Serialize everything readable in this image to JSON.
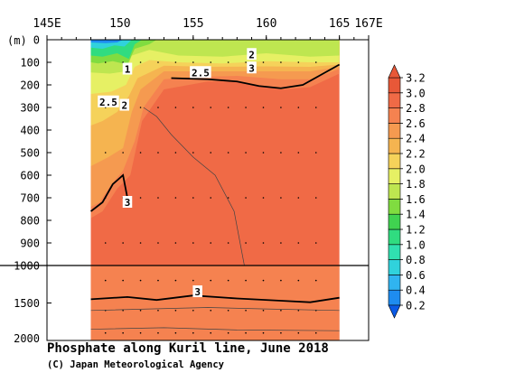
{
  "chart_data": {
    "type": "contour",
    "title": "Phosphate along Kuril line, June 2018",
    "credit": "(C) Japan Meteorological Agency",
    "y_unit_label": "(m)",
    "x_axis": {
      "range": [
        145,
        167
      ],
      "ticks": [
        {
          "value": 145,
          "label": "145E"
        },
        {
          "value": 150,
          "label": "150"
        },
        {
          "value": 155,
          "label": "155"
        },
        {
          "value": 160,
          "label": "160"
        },
        {
          "value": 165,
          "label": "165"
        },
        {
          "value": 167,
          "label": "167E"
        }
      ]
    },
    "y_axis": {
      "upper_range": [
        0,
        1000
      ],
      "lower_range": [
        1000,
        2000
      ],
      "upper_ticks": [
        0,
        100,
        200,
        300,
        400,
        500,
        600,
        700,
        800,
        900,
        1000
      ],
      "lower_ticks": [
        1500,
        2000
      ]
    },
    "section_extent_lon": [
      148,
      165
    ],
    "colorbar": {
      "levels": [
        0.2,
        0.4,
        0.6,
        0.8,
        1.0,
        1.2,
        1.4,
        1.6,
        1.8,
        2.0,
        2.2,
        2.4,
        2.6,
        2.8,
        3.0,
        3.2
      ],
      "labels": [
        "0.2",
        "0.4",
        "0.6",
        "0.8",
        "1.0",
        "1.2",
        "1.4",
        "1.6",
        "1.8",
        "2.0",
        "2.2",
        "2.4",
        "2.6",
        "2.8",
        "3.0",
        "3.2"
      ],
      "colors": [
        "#0a5ae6",
        "#1e8cf0",
        "#30b4f0",
        "#30d2dc",
        "#30e0b0",
        "#30dc80",
        "#40d250",
        "#80dc40",
        "#bee650",
        "#e6f064",
        "#f5d25a",
        "#f5b450",
        "#f59a50",
        "#f58250",
        "#f06a46",
        "#e85838"
      ]
    },
    "contour_labels": [
      {
        "text": "1",
        "lon": 150.5,
        "depth": 130
      },
      {
        "text": "2",
        "lon": 159.0,
        "depth": 65
      },
      {
        "text": "3",
        "lon": 159.0,
        "depth": 125
      },
      {
        "text": "2.5",
        "lon": 155.5,
        "depth": 145
      },
      {
        "text": "2.5",
        "lon": 149.2,
        "depth": 275
      },
      {
        "text": "2",
        "lon": 150.3,
        "depth": 290
      },
      {
        "text": "3",
        "lon": 150.5,
        "depth": 720
      },
      {
        "text": "3",
        "lon": 155.3,
        "depth": 1350
      }
    ]
  }
}
